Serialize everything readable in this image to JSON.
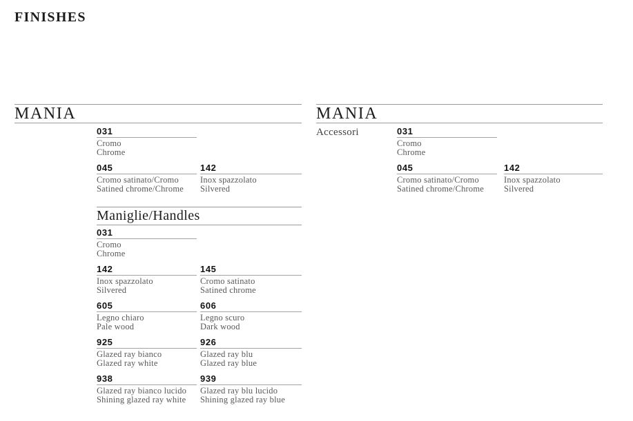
{
  "page": {
    "title": "FINISHES"
  },
  "colors": {
    "background": "#ffffff",
    "text_heading": "#1c1c1c",
    "text_code": "#121212",
    "text_description": "#585858",
    "rule": "#9a9a9a"
  },
  "sections": [
    {
      "title": "MANIA",
      "side_label": null,
      "groups": [
        {
          "heading": null,
          "rows": [
            [
              {
                "code": "031",
                "name_it": "Cromo",
                "name_en": "Chrome"
              }
            ],
            [
              {
                "code": "045",
                "name_it": "Cromo satinato/Cromo",
                "name_en": "Satined chrome/Chrome"
              },
              {
                "code": "142",
                "name_it": "Inox spazzolato",
                "name_en": "Silvered"
              }
            ]
          ]
        },
        {
          "heading": "Maniglie/Handles",
          "rows": [
            [
              {
                "code": "031",
                "name_it": "Cromo",
                "name_en": "Chrome"
              }
            ],
            [
              {
                "code": "142",
                "name_it": "Inox spazzolato",
                "name_en": "Silvered"
              },
              {
                "code": "145",
                "name_it": "Cromo satinato",
                "name_en": "Satined chrome"
              }
            ],
            [
              {
                "code": "605",
                "name_it": "Legno chiaro",
                "name_en": "Pale wood"
              },
              {
                "code": "606",
                "name_it": "Legno scuro",
                "name_en": "Dark wood"
              }
            ],
            [
              {
                "code": "925",
                "name_it": "Glazed ray bianco",
                "name_en": "Glazed ray white"
              },
              {
                "code": "926",
                "name_it": "Glazed ray blu",
                "name_en": "Glazed ray blue"
              }
            ],
            [
              {
                "code": "938",
                "name_it": "Glazed ray bianco lucido",
                "name_en": "Shining glazed ray white"
              },
              {
                "code": "939",
                "name_it": "Glazed ray blu lucido",
                "name_en": "Shining glazed ray blue"
              }
            ]
          ]
        }
      ]
    },
    {
      "title": "MANIA",
      "side_label": "Accessori",
      "groups": [
        {
          "heading": null,
          "rows": [
            [
              {
                "code": "031",
                "name_it": "Cromo",
                "name_en": "Chrome"
              }
            ],
            [
              {
                "code": "045",
                "name_it": "Cromo satinato/Cromo",
                "name_en": "Satined chrome/Chrome"
              },
              {
                "code": "142",
                "name_it": "Inox spazzolato",
                "name_en": "Silvered"
              }
            ]
          ]
        }
      ]
    }
  ]
}
